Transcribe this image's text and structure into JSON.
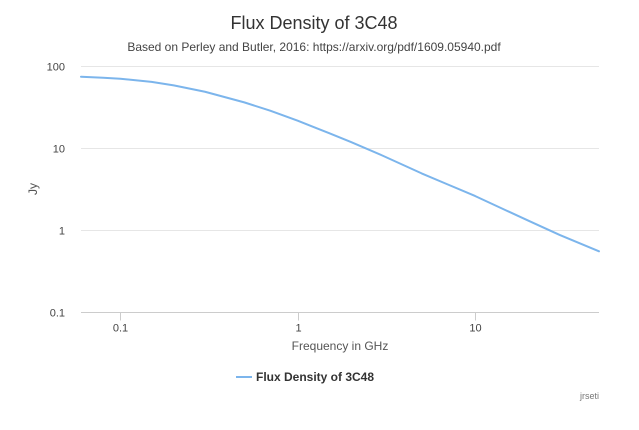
{
  "chart_data": {
    "type": "line",
    "title": "Flux Density of 3C48",
    "subtitle": "Based on Perley and Butler, 2016: https://arxiv.org/pdf/1609.05940.pdf",
    "xlabel": "Frequency in GHz",
    "ylabel": "Jy",
    "x_scale": "log",
    "y_scale": "log",
    "xlim": [
      0.06,
      50
    ],
    "ylim": [
      0.1,
      100
    ],
    "x_ticks": [
      0.1,
      1,
      10
    ],
    "x_tick_labels": [
      "0.1",
      "1",
      "10"
    ],
    "y_ticks": [
      100,
      10,
      1,
      0.1
    ],
    "y_tick_labels": [
      "100",
      "10",
      "1",
      "0.1"
    ],
    "grid": "horizontal",
    "legend_position": "bottom-center",
    "series": [
      {
        "name": "Flux Density of 3C48",
        "color": "#7cb5ec",
        "x": [
          0.06,
          0.08,
          0.1,
          0.15,
          0.2,
          0.3,
          0.5,
          0.7,
          1,
          1.5,
          2,
          3,
          5,
          7,
          10,
          15,
          20,
          30,
          50
        ],
        "y": [
          74,
          72,
          70,
          64,
          58,
          48.5,
          36,
          28.5,
          21.5,
          15.2,
          11.8,
          8.1,
          4.9,
          3.6,
          2.6,
          1.73,
          1.3,
          0.87,
          0.55
        ]
      }
    ]
  },
  "credit": "jrseti"
}
